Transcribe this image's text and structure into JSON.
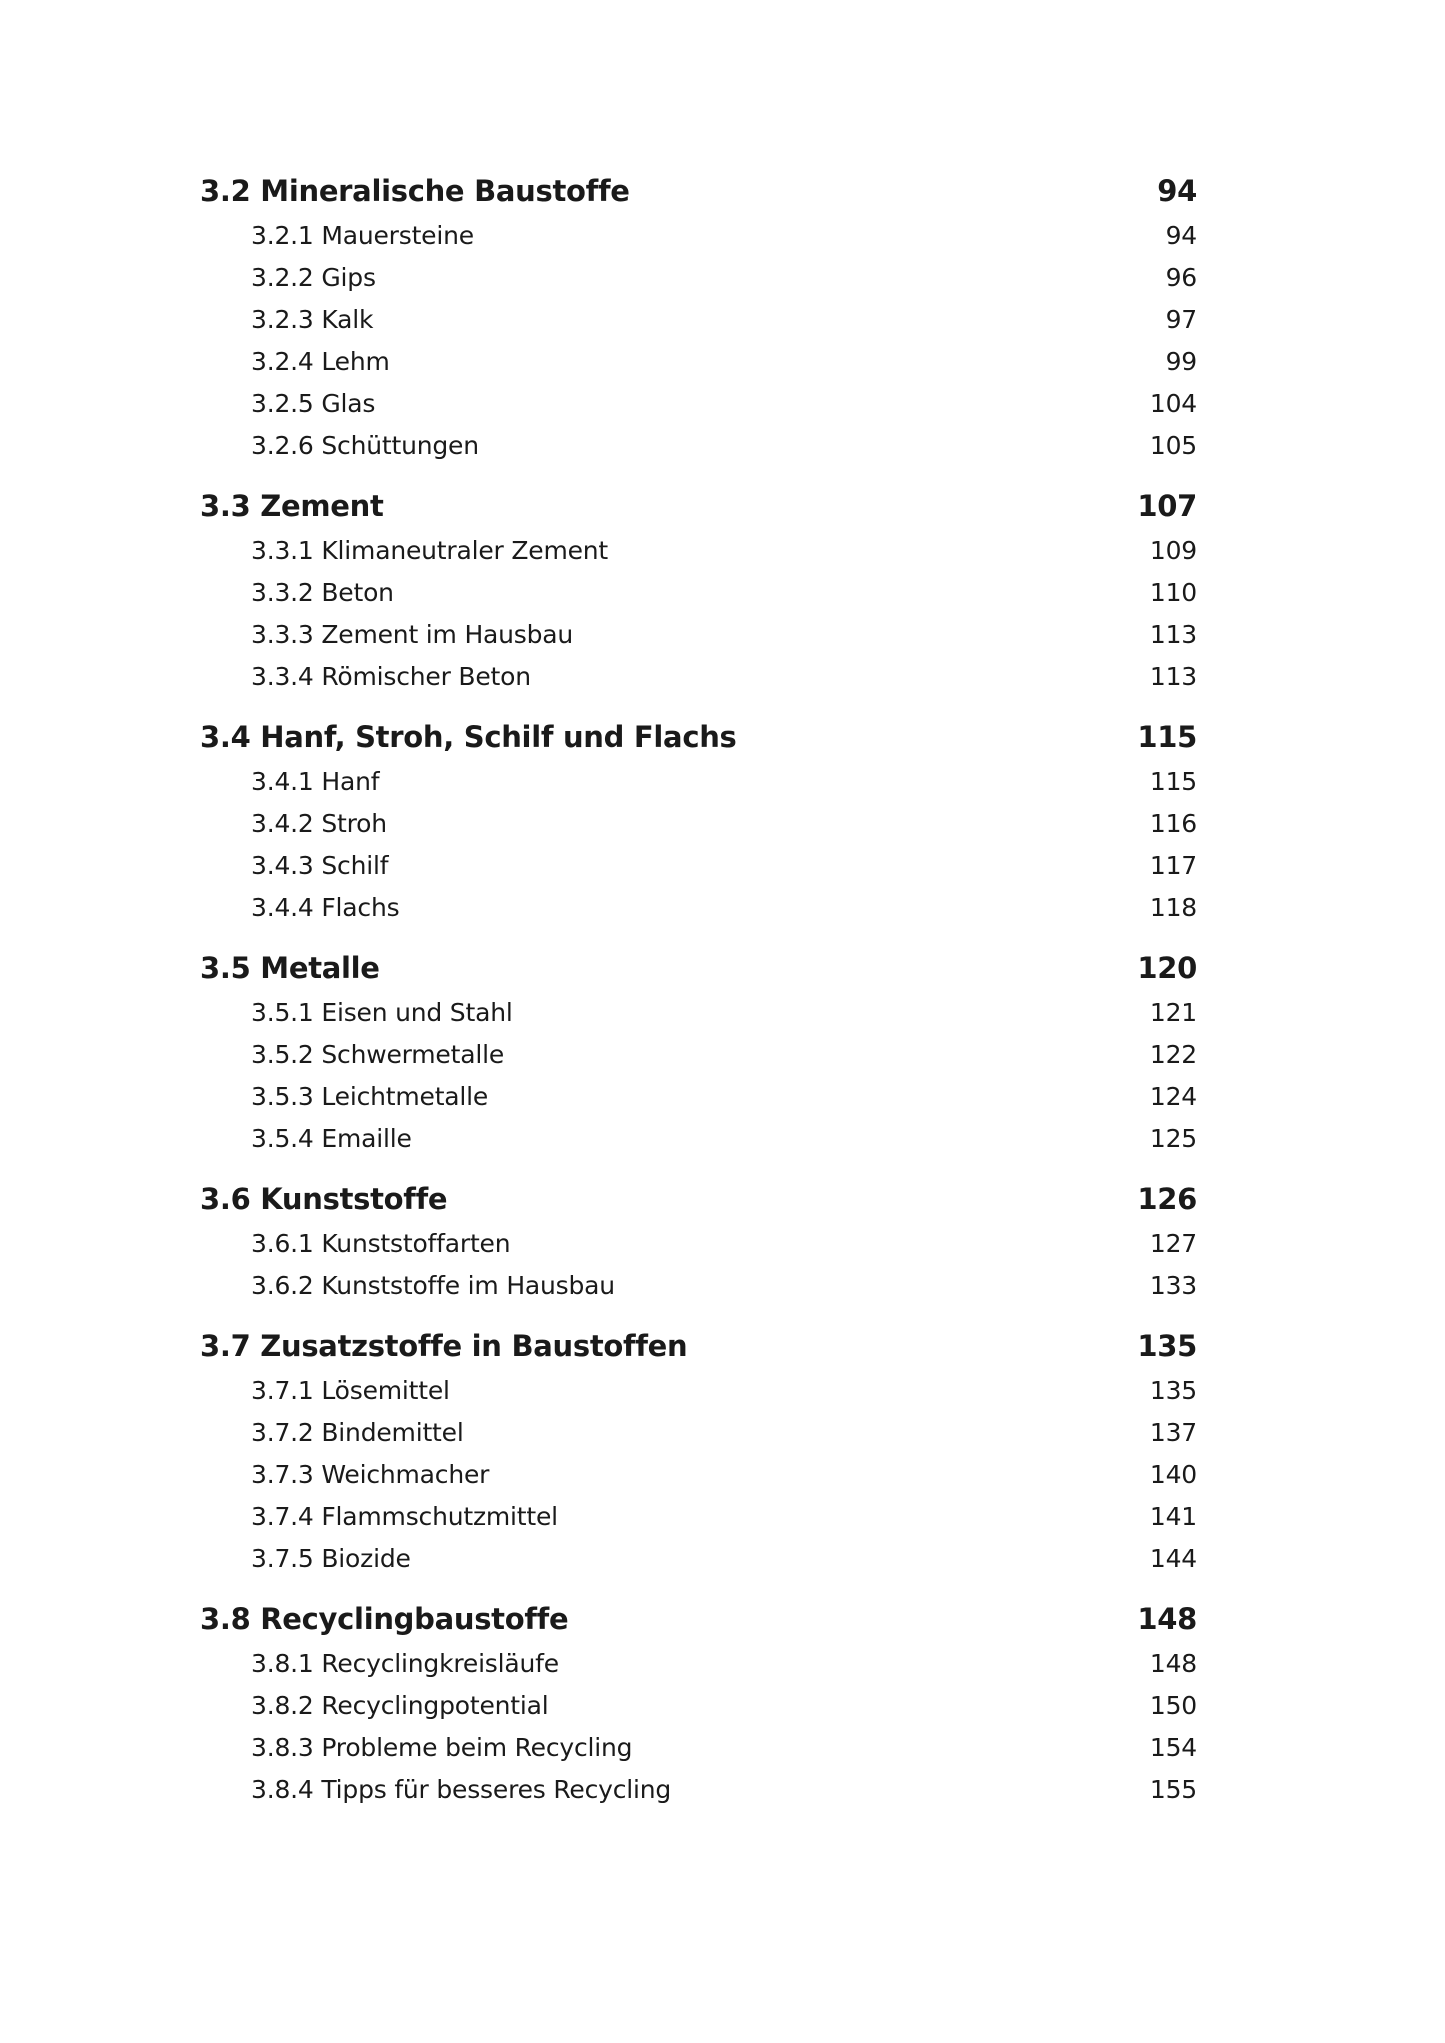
{
  "sections": [
    {
      "title": "3.2 Mineralische Baustoffe",
      "page": "94",
      "items": [
        {
          "title": "3.2.1 Mauersteine",
          "page": "94"
        },
        {
          "title": "3.2.2 Gips",
          "page": "96"
        },
        {
          "title": "3.2.3 Kalk",
          "page": "97"
        },
        {
          "title": "3.2.4 Lehm",
          "page": "99"
        },
        {
          "title": "3.2.5 Glas",
          "page": "104"
        },
        {
          "title": "3.2.6 Schüttungen",
          "page": "105"
        }
      ]
    },
    {
      "title": "3.3 Zement",
      "page": "107",
      "items": [
        {
          "title": "3.3.1 Klimaneutraler Zement",
          "page": "109"
        },
        {
          "title": "3.3.2 Beton",
          "page": "110"
        },
        {
          "title": "3.3.3 Zement im Hausbau",
          "page": "113"
        },
        {
          "title": "3.3.4 Römischer Beton",
          "page": "113"
        }
      ]
    },
    {
      "title": "3.4 Hanf, Stroh, Schilf und Flachs",
      "page": "115",
      "items": [
        {
          "title": "3.4.1 Hanf",
          "page": "115"
        },
        {
          "title": "3.4.2 Stroh",
          "page": "116"
        },
        {
          "title": "3.4.3 Schilf",
          "page": "117"
        },
        {
          "title": "3.4.4 Flachs",
          "page": "118"
        }
      ]
    },
    {
      "title": "3.5 Metalle",
      "page": "120",
      "items": [
        {
          "title": "3.5.1 Eisen und Stahl",
          "page": "121"
        },
        {
          "title": "3.5.2 Schwermetalle",
          "page": "122"
        },
        {
          "title": "3.5.3 Leichtmetalle",
          "page": "124"
        },
        {
          "title": "3.5.4 Emaille",
          "page": "125"
        }
      ]
    },
    {
      "title": "3.6 Kunststoffe",
      "page": "126",
      "items": [
        {
          "title": "3.6.1 Kunststoffarten",
          "page": "127"
        },
        {
          "title": "3.6.2 Kunststoffe im Hausbau",
          "page": "133"
        }
      ]
    },
    {
      "title": "3.7 Zusatzstoffe in Baustoffen",
      "page": "135",
      "items": [
        {
          "title": "3.7.1 Lösemittel",
          "page": "135"
        },
        {
          "title": "3.7.2 Bindemittel",
          "page": "137"
        },
        {
          "title": "3.7.3 Weichmacher",
          "page": "140"
        },
        {
          "title": "3.7.4 Flammschutzmittel",
          "page": "141"
        },
        {
          "title": "3.7.5 Biozide",
          "page": "144"
        }
      ]
    },
    {
      "title": "3.8 Recyclingbaustoffe",
      "page": "148",
      "items": [
        {
          "title": "3.8.1 Recyclingkreisläufe",
          "page": "148"
        },
        {
          "title": "3.8.2 Recyclingpotential",
          "page": "150"
        },
        {
          "title": "3.8.3 Probleme beim Recycling",
          "page": "154"
        },
        {
          "title": "3.8.4 Tipps für besseres Recycling",
          "page": "155"
        }
      ]
    }
  ]
}
